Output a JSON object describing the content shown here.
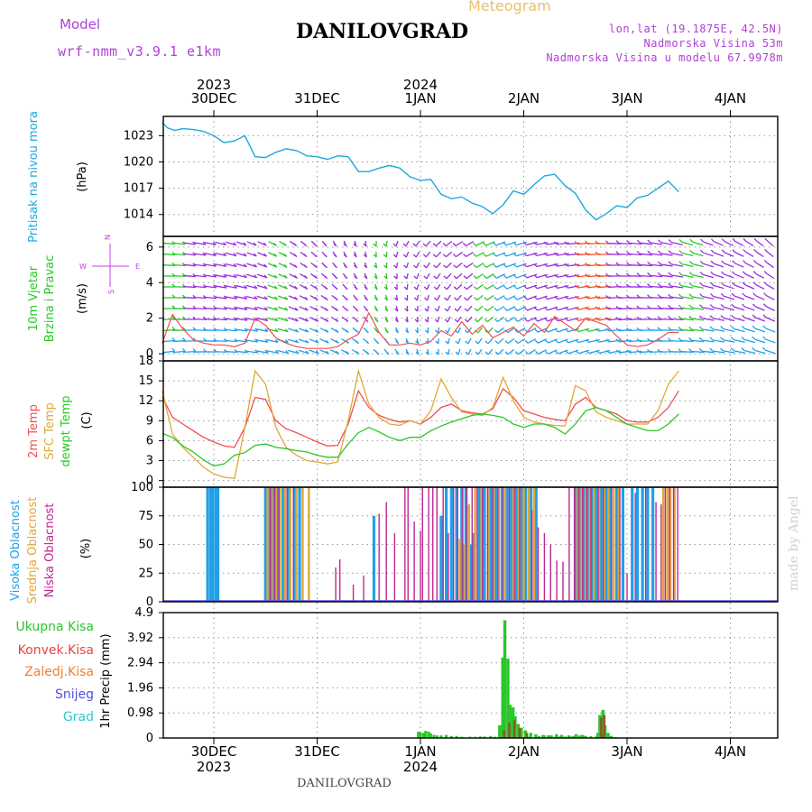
{
  "header": {
    "model_label": "Model",
    "model_name": "wrf-nmm_v3.9.1 e1km",
    "title": "DANILOVGRAD",
    "meteogram": "Meteogram",
    "coords": "lon,lat (19.1875E, 42.5N)",
    "elevation": "Nadmorska Visina 53m",
    "model_elevation": "Nadmorska Visina u modelu 67.9978m"
  },
  "top_axis": {
    "years": [
      {
        "label": "2023",
        "day": 0
      },
      {
        "label": "2024",
        "day": 2
      }
    ],
    "days": [
      "30DEC",
      "31DEC",
      "1JAN",
      "2JAN",
      "3JAN",
      "4JAN"
    ]
  },
  "bottom_axis": {
    "years": [
      {
        "label": "2023",
        "day": 0
      },
      {
        "label": "2024",
        "day": 2
      }
    ],
    "days": [
      "30DEC",
      "31DEC",
      "1JAN",
      "2JAN",
      "3JAN",
      "4JAN"
    ]
  },
  "footer": {
    "station": "DANILOVGRAD",
    "credit": "made by Angel"
  },
  "colors": {
    "pressure": "#1ea8e0",
    "t2m": "#f05050",
    "sfc": "#e0a838",
    "dewpt": "#28c828",
    "high_cloud": "#20a0e8",
    "mid_cloud": "#e0a838",
    "low_cloud": "#c02890",
    "precip_total": "#28c828",
    "precip_conv": "#f04040",
    "precip_frozen": "#f08030",
    "snow": "#5050e0",
    "hail": "#30c8c8",
    "wind_label": "#28c828",
    "wind_purple": "#c040e0"
  },
  "chart_data": [
    {
      "type": "line",
      "ylabel": "Pritisak na nivou mora",
      "unit": "(hPa)",
      "yticks": [
        1014,
        1017,
        1020,
        1023
      ],
      "ylim": [
        1011.5,
        1025.2
      ],
      "grid": true,
      "x_days": [
        -0.5,
        -0.45,
        -0.38,
        -0.3,
        -0.2,
        -0.1,
        0,
        0.1,
        0.2,
        0.3,
        0.4,
        0.5,
        0.6,
        0.7,
        0.8,
        0.9,
        1.0,
        1.1,
        1.2,
        1.3,
        1.4,
        1.5,
        1.6,
        1.7,
        1.8,
        1.9,
        2.0,
        2.1,
        2.2,
        2.3,
        2.4,
        2.5,
        2.6,
        2.7,
        2.8,
        2.9,
        3.0,
        3.1,
        3.2,
        3.3,
        3.4,
        3.5,
        3.6,
        3.7,
        3.8,
        3.9,
        4.0,
        4.1,
        4.2,
        4.3,
        4.4,
        4.5
      ],
      "series": [
        {
          "values": [
            1024.5,
            1023.9,
            1023.6,
            1023.8,
            1023.7,
            1023.5,
            1023.0,
            1022.2,
            1022.4,
            1023.0,
            1020.6,
            1020.5,
            1021.1,
            1021.5,
            1021.3,
            1020.7,
            1020.6,
            1020.3,
            1020.7,
            1020.6,
            1018.9,
            1018.9,
            1019.3,
            1019.6,
            1019.3,
            1018.3,
            1017.9,
            1018.0,
            1016.3,
            1015.8,
            1016.0,
            1015.3,
            1014.9,
            1014.1,
            1015.1,
            1016.7,
            1016.3,
            1017.4,
            1018.4,
            1018.6,
            1017.3,
            1016.4,
            1014.5,
            1013.4,
            1014.1,
            1015.0,
            1014.8,
            1015.9,
            1016.2,
            1017.0,
            1017.8,
            1016.6
          ]
        }
      ]
    },
    {
      "type": "line",
      "ylabel": "10m Vjetar Brzina i Pravac",
      "unit": "(m/s)",
      "yticks": [
        0,
        2,
        4,
        6
      ],
      "ylim": [
        -0.4,
        6.6
      ],
      "grid": true,
      "compass": {
        "n": "N",
        "s": "S",
        "w": "W",
        "e": "E"
      },
      "x_days": [
        -0.5,
        -0.4,
        -0.3,
        -0.2,
        -0.1,
        0,
        0.1,
        0.2,
        0.3,
        0.4,
        0.5,
        0.6,
        0.7,
        0.8,
        0.9,
        1.0,
        1.1,
        1.2,
        1.3,
        1.4,
        1.5,
        1.6,
        1.7,
        1.8,
        1.9,
        2.0,
        2.1,
        2.2,
        2.3,
        2.4,
        2.5,
        2.6,
        2.7,
        2.8,
        2.9,
        3.0,
        3.1,
        3.2,
        3.3,
        3.4,
        3.5,
        3.6,
        3.7,
        3.8,
        3.9,
        4.0,
        4.1,
        4.2,
        4.3,
        4.4,
        4.5
      ],
      "series": [
        {
          "values": [
            0.6,
            2.2,
            1.4,
            0.8,
            0.6,
            0.5,
            0.5,
            0.4,
            0.6,
            2.0,
            1.6,
            0.9,
            0.6,
            0.4,
            0.3,
            0.3,
            0.3,
            0.4,
            0.8,
            1.1,
            2.3,
            1.2,
            0.5,
            0.5,
            0.6,
            0.5,
            0.7,
            1.3,
            1.0,
            1.8,
            1.1,
            1.6,
            0.9,
            1.2,
            1.5,
            1.0,
            1.7,
            1.2,
            2.1,
            1.7,
            1.3,
            2.0,
            1.8,
            1.6,
            1.0,
            0.5,
            0.4,
            0.5,
            0.8,
            1.2,
            1.2
          ]
        }
      ]
    },
    {
      "type": "line",
      "ylabel": "2m Temp / SFC Temp / dewpt Temp",
      "unit": "(C)",
      "legend": [
        "2m Temp",
        "SFC Temp",
        "dewpt Temp"
      ],
      "yticks": [
        0,
        3,
        6,
        9,
        12,
        15,
        18
      ],
      "ylim": [
        -1.0,
        18.0
      ],
      "grid": true,
      "x_days": [
        -0.5,
        -0.4,
        -0.3,
        -0.2,
        -0.1,
        0,
        0.1,
        0.2,
        0.3,
        0.4,
        0.5,
        0.6,
        0.7,
        0.8,
        0.9,
        1.0,
        1.1,
        1.2,
        1.3,
        1.4,
        1.5,
        1.6,
        1.7,
        1.8,
        1.9,
        2.0,
        2.1,
        2.2,
        2.3,
        2.4,
        2.5,
        2.6,
        2.7,
        2.8,
        2.9,
        3.0,
        3.1,
        3.2,
        3.3,
        3.4,
        3.5,
        3.6,
        3.7,
        3.8,
        3.9,
        4.0,
        4.1,
        4.2,
        4.3,
        4.4,
        4.5
      ],
      "series": [
        {
          "name": "2m Temp",
          "values": [
            12.6,
            9.5,
            8.5,
            7.5,
            6.5,
            5.8,
            5.2,
            5.0,
            8.0,
            12.5,
            12.2,
            9.0,
            7.8,
            7.2,
            6.5,
            5.8,
            5.2,
            5.3,
            8.5,
            13.5,
            11.0,
            9.8,
            9.2,
            8.8,
            9.0,
            8.5,
            9.5,
            11.0,
            11.5,
            10.5,
            10.2,
            10.0,
            10.8,
            13.8,
            12.5,
            10.5,
            10.0,
            9.5,
            9.2,
            9.0,
            11.5,
            12.5,
            11.0,
            10.5,
            10.0,
            9.0,
            8.8,
            8.8,
            9.5,
            11.0,
            13.5
          ]
        },
        {
          "name": "SFC Temp",
          "values": [
            13.5,
            7.0,
            5.0,
            3.5,
            2.0,
            1.0,
            0.5,
            0.3,
            8.0,
            16.5,
            14.5,
            8.0,
            5.0,
            3.8,
            3.0,
            2.8,
            2.5,
            2.8,
            9.0,
            16.5,
            11.5,
            9.5,
            8.5,
            8.3,
            9.0,
            8.5,
            10.5,
            15.3,
            12.5,
            10.3,
            10.0,
            9.8,
            11.0,
            15.5,
            12.0,
            9.5,
            8.8,
            8.5,
            8.3,
            8.2,
            14.3,
            13.5,
            10.3,
            9.5,
            9.0,
            8.5,
            8.5,
            8.5,
            10.5,
            14.5,
            16.5
          ]
        },
        {
          "name": "dewpt Temp",
          "values": [
            7.1,
            6.5,
            5.2,
            4.3,
            3.1,
            2.2,
            2.5,
            3.8,
            4.2,
            5.3,
            5.5,
            5.0,
            4.8,
            4.5,
            4.3,
            3.8,
            3.5,
            3.5,
            5.5,
            7.2,
            8.0,
            7.3,
            6.5,
            6.0,
            6.5,
            6.5,
            7.5,
            8.2,
            8.8,
            9.3,
            9.8,
            10.0,
            9.8,
            9.5,
            8.5,
            8.0,
            8.5,
            8.5,
            8.0,
            7.0,
            8.5,
            10.5,
            11.0,
            10.5,
            9.5,
            8.5,
            8.0,
            7.5,
            7.5,
            8.5,
            10.0
          ]
        }
      ]
    },
    {
      "type": "bar",
      "ylabel": "Visoka Oblacnost / Srednja Oblacnost / Niska Oblacnost",
      "unit": "(%)",
      "legend": [
        "Visoka Oblacnost",
        "Srednja Oblacnost",
        "Niska Oblacnost"
      ],
      "yticks": [
        0,
        25,
        50,
        75,
        100
      ],
      "ylim": [
        0,
        100
      ],
      "grid": true,
      "series": [
        {
          "name": "Visoka Oblacnost",
          "x_days": [
            -0.06,
            -0.03,
            -0.01,
            0.02,
            0.04,
            0.5,
            0.54,
            0.58,
            0.62,
            0.67,
            0.72,
            0.78,
            0.83,
            1.55,
            2.2,
            2.25,
            2.3,
            2.35,
            2.4,
            2.44,
            2.48,
            2.52,
            2.57,
            2.62,
            2.68,
            2.73,
            2.79,
            2.84,
            2.88,
            2.93,
            2.98,
            3.02,
            3.07,
            3.12,
            3.5,
            3.54,
            3.58,
            3.62,
            3.66,
            3.7,
            3.75,
            3.8,
            3.84,
            3.9,
            3.96,
            4.05,
            4.1,
            4.15,
            4.2,
            4.25
          ],
          "values": [
            100,
            100,
            100,
            100,
            100,
            100,
            100,
            100,
            100,
            100,
            100,
            100,
            100,
            75,
            75,
            100,
            100,
            100,
            100,
            100,
            50,
            60,
            100,
            100,
            100,
            100,
            100,
            100,
            100,
            100,
            100,
            100,
            100,
            100,
            100,
            100,
            100,
            100,
            100,
            100,
            100,
            100,
            100,
            100,
            100,
            100,
            100,
            100,
            100,
            100
          ]
        },
        {
          "name": "Srednja Oblacnost",
          "x_days": [
            0.52,
            0.56,
            0.6,
            0.64,
            0.69,
            0.74,
            0.8,
            0.86,
            0.92,
            2.38,
            2.42,
            2.47,
            2.53,
            2.59,
            2.66,
            2.71,
            2.76,
            2.82,
            2.9,
            2.95,
            3.0,
            3.05,
            3.1,
            3.52,
            3.56,
            3.6,
            3.64,
            3.68,
            3.73,
            3.78,
            3.82,
            3.87,
            3.92,
            4.35,
            4.39,
            4.42,
            4.46
          ],
          "values": [
            100,
            100,
            100,
            100,
            100,
            100,
            100,
            100,
            100,
            55,
            50,
            85,
            100,
            100,
            100,
            100,
            100,
            100,
            100,
            100,
            100,
            100,
            100,
            100,
            100,
            100,
            100,
            100,
            100,
            100,
            100,
            100,
            100,
            100,
            100,
            100,
            100
          ]
        },
        {
          "name": "Niska Oblacnost",
          "x_days": [
            0.55,
            0.59,
            0.63,
            0.71,
            0.77,
            1.18,
            1.22,
            1.35,
            1.45,
            1.6,
            1.67,
            1.75,
            1.85,
            1.88,
            1.94,
            2.0,
            2.02,
            2.08,
            2.12,
            2.16,
            2.22,
            2.27,
            2.32,
            2.36,
            2.41,
            2.45,
            2.5,
            2.55,
            2.6,
            2.65,
            2.7,
            2.75,
            2.8,
            2.86,
            2.91,
            2.96,
            3.08,
            3.14,
            3.2,
            3.26,
            3.32,
            3.38,
            3.44,
            3.49,
            3.53,
            3.57,
            3.61,
            3.65,
            3.72,
            3.77,
            3.85,
            3.93,
            4.0,
            4.08,
            4.18,
            4.28,
            4.33,
            4.37,
            4.41,
            4.45,
            4.49
          ],
          "values": [
            100,
            100,
            100,
            100,
            100,
            30,
            37,
            15,
            23,
            77,
            87,
            60,
            100,
            100,
            70,
            62,
            100,
            100,
            100,
            100,
            100,
            60,
            100,
            100,
            100,
            100,
            100,
            100,
            100,
            100,
            100,
            100,
            100,
            100,
            100,
            100,
            80,
            65,
            60,
            50,
            36,
            35,
            100,
            100,
            100,
            100,
            100,
            100,
            100,
            100,
            100,
            100,
            25,
            95,
            100,
            87,
            85,
            100,
            100,
            100,
            100
          ]
        }
      ]
    },
    {
      "type": "bar",
      "ylabel": "1hr Precip",
      "unit": "(mm)",
      "legend": [
        "Ukupna Kisa",
        "Konvek.Kisa",
        "Zaledj.Kisa",
        "Snijeg",
        "Grad"
      ],
      "yticks": [
        0,
        0.98,
        1.96,
        2.94,
        3.92,
        4.9
      ],
      "ylim": [
        0,
        4.9
      ],
      "grid": true,
      "series": [
        {
          "name": "Ukupna Kisa",
          "x_days": [
            1.98,
            2.0,
            2.03,
            2.05,
            2.08,
            2.1,
            2.13,
            2.16,
            2.2,
            2.25,
            2.3,
            2.35,
            2.4,
            2.48,
            2.53,
            2.58,
            2.62,
            2.68,
            2.72,
            2.78,
            2.85,
            2.9,
            2.96,
            3.05,
            3.15,
            3.2,
            3.25,
            3.3,
            3.35,
            3.4,
            3.45,
            3.48,
            3.51,
            3.54,
            3.57,
            3.6,
            3.65,
            3.7,
            3.77,
            3.84
          ],
          "values": [
            0.25,
            0.22,
            0.2,
            0.28,
            0.25,
            0.18,
            0.12,
            0.1,
            0.1,
            0.12,
            0.08,
            0.08,
            0.05,
            0.05,
            0.05,
            0.06,
            0.06,
            0.08,
            0.05,
            0.05,
            0.04,
            0.05,
            0.05,
            0.05,
            0.08,
            0.1,
            0.1,
            0.05,
            0.06,
            0.06,
            0.06,
            0.08,
            0.08,
            0.1,
            0.09,
            0.08,
            0.07,
            0.06,
            0.06,
            0.05
          ]
        },
        {
          "name": "Ukupna Kisa",
          "x_days": [
            2.78,
            2.81,
            2.83,
            2.86,
            2.88,
            2.91,
            2.93,
            2.96,
            2.99,
            3.03,
            3.08,
            3.13,
            3.2,
            3.25,
            3.28,
            3.33,
            3.38,
            3.45,
            3.52,
            3.58,
            3.6,
            3.73,
            3.75,
            3.78,
            3.8,
            3.83,
            3.86,
            3.9
          ],
          "values": [
            0.5,
            3.15,
            4.6,
            3.1,
            1.3,
            1.2,
            0.85,
            0.55,
            0.4,
            0.3,
            0.2,
            0.15,
            0.12,
            0.1,
            0.1,
            0.15,
            0.12,
            0.1,
            0.15,
            0.12,
            0.08,
            0.2,
            0.9,
            1.1,
            0.5,
            0.2,
            0.08,
            0.04
          ]
        },
        {
          "name": "Konvek.Kisa",
          "x_days": [
            2.81,
            2.86,
            2.91,
            2.96,
            3.03,
            3.75,
            3.78
          ],
          "values": [
            0.3,
            0.6,
            0.7,
            0.4,
            0.2,
            0.8,
            0.9
          ]
        }
      ]
    }
  ]
}
